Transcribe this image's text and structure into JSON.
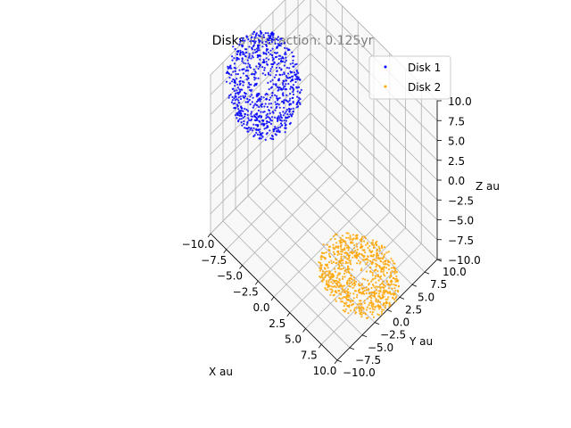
{
  "chart_data": {
    "type": "scatter",
    "projection": "3d",
    "title": "Disks interaction: 0.125yr",
    "xlabel": "X au",
    "ylabel": "Y au",
    "zlabel": "Z au",
    "xlim": [
      -10.0,
      10.0
    ],
    "ylim": [
      -10.0,
      10.0
    ],
    "zlim": [
      -10.0,
      10.0
    ],
    "xticks": [
      "−10.0",
      "−7.5",
      "−5.0",
      "−2.5",
      "0.0",
      "2.5",
      "5.0",
      "7.5",
      "10.0"
    ],
    "yticks": [
      "−10.0",
      "−7.5",
      "−5.0",
      "−2.5",
      "0.0",
      "2.5",
      "5.0",
      "7.5",
      "10.0"
    ],
    "zticks": [
      "−10.0",
      "−7.5",
      "−5.0",
      "−2.5",
      "0.0",
      "2.5",
      "5.0",
      "7.5",
      "10.0"
    ],
    "grid": true,
    "legend_position": "upper-right",
    "series": [
      {
        "name": "Disk 1",
        "color": "#0000ff",
        "center": [
          -7.5,
          -2.5,
          6
        ],
        "radius": [
          0.6,
          5.0
        ],
        "tilt_degrees": 40,
        "points": 800
      },
      {
        "name": "Disk 2",
        "color": "#ffa500",
        "center": [
          7.5,
          -2.5,
          -6
        ],
        "radius": [
          0.6,
          5.0
        ],
        "tilt_degrees": 0,
        "points": 800
      }
    ]
  }
}
